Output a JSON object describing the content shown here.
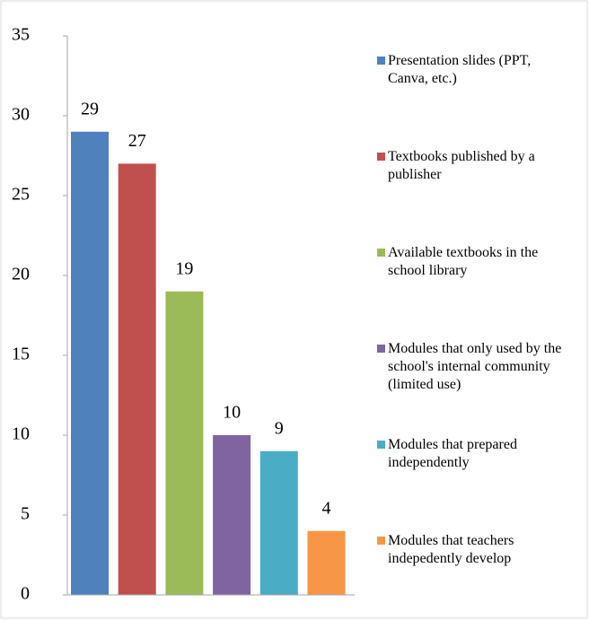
{
  "chart_data": {
    "type": "bar",
    "series": [
      {
        "name": "Presentation slides (PPT, Canva, etc.)",
        "color": "#4f81bd",
        "values": [
          29
        ]
      },
      {
        "name": "Textbooks published by a publisher",
        "color": "#c0504d",
        "values": [
          27
        ]
      },
      {
        "name": "Available textbooks in the school library",
        "color": "#9bbb59",
        "values": [
          19
        ]
      },
      {
        "name": "Modules that only used by the school's internal community (limited use)",
        "color": "#8064a2",
        "values": [
          10
        ]
      },
      {
        "name": "Modules that prepared independently",
        "color": "#4bacc6",
        "values": [
          9
        ]
      },
      {
        "name": "Modules that teachers indepedently develop",
        "color": "#f79646",
        "values": [
          4
        ]
      }
    ],
    "ylim": [
      0,
      35
    ],
    "yticks": [
      0,
      5,
      10,
      15,
      20,
      25,
      30,
      35
    ],
    "grid": false,
    "legend": "right"
  }
}
